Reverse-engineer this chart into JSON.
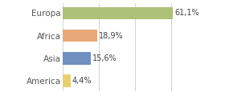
{
  "categories": [
    "America",
    "Asia",
    "Africa",
    "Europa"
  ],
  "values": [
    4.4,
    15.6,
    18.9,
    61.1
  ],
  "labels": [
    "4,4%",
    "15,6%",
    "18,9%",
    "61,1%"
  ],
  "bar_colors": [
    "#e8d070",
    "#7090c0",
    "#e8a878",
    "#adc178"
  ],
  "background_color": "#ffffff",
  "xlim": [
    0,
    75
  ],
  "label_fontsize": 7,
  "tick_fontsize": 7.5,
  "grid_lines": [
    0,
    20,
    40,
    60
  ],
  "grid_color": "#cccccc",
  "bar_height": 0.55
}
